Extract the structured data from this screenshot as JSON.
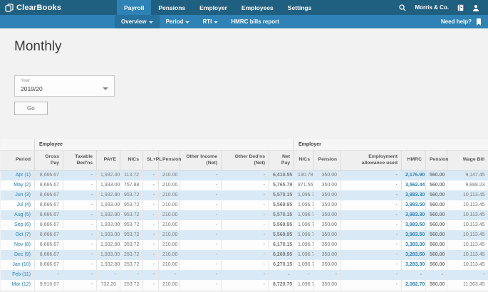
{
  "brand": {
    "name": "ClearBooks"
  },
  "topnav": {
    "items": [
      "Payroll",
      "Pensions",
      "Employer",
      "Employees",
      "Settings"
    ],
    "active_item": "Payroll",
    "account": "Morris & Co."
  },
  "subnav": {
    "items": [
      {
        "label": "Overview",
        "has_dropdown": true,
        "active": true
      },
      {
        "label": "Period",
        "has_dropdown": true,
        "active": false
      },
      {
        "label": "RTI",
        "has_dropdown": true,
        "active": false
      },
      {
        "label": "HMRC bills report",
        "has_dropdown": false,
        "active": false
      }
    ],
    "help_label": "Need help?"
  },
  "page": {
    "title": "Monthly"
  },
  "filter": {
    "year_label": "Year",
    "year_value": "2019/20",
    "go_label": "Go"
  },
  "table": {
    "group_headers": {
      "employee": "Employee",
      "employer": "Employer"
    },
    "column_ids": [
      "period",
      "gross_pay",
      "taxable_dedns",
      "paye",
      "nics",
      "slpl",
      "pension_ee",
      "other_income",
      "other_dedns",
      "net_pay",
      "er_nics",
      "er_pension",
      "emp_allowance",
      "hmrc",
      "pension_total",
      "wage_bill"
    ],
    "columns": [
      "Period",
      "Gross Pay",
      "Taxable Ded'ns",
      "PAYE",
      "NICs",
      "SL+PL",
      "Pension",
      "Other Income (Net)",
      "Other Ded'ns (Net)",
      "Net Pay",
      "NICs",
      "Pension",
      "Employment allowance used",
      "HMRC",
      "Pension",
      "Wage Bill"
    ],
    "rows": [
      [
        "Apr (1)",
        "8,666.67",
        "-",
        "1,932.40",
        "113.72",
        "-",
        "210.00",
        "-",
        "-",
        "6,410.55",
        "130.78",
        "350.00",
        "-",
        "2,176.90",
        "560.00",
        "9,147.45"
      ],
      [
        "May (2)",
        "8,666.67",
        "-",
        "1,933.00",
        "757.88",
        "-",
        "210.00",
        "-",
        "-",
        "5,765.79",
        "871.56",
        "350.00",
        "-",
        "3,562.44",
        "560.00",
        "9,888.23"
      ],
      [
        "Jun (3)",
        "8,666.67",
        "-",
        "1,932.80",
        "953.72",
        "-",
        "210.00",
        "-",
        "-",
        "5,570.15",
        "1,096.78",
        "350.00",
        "-",
        "3,983.30",
        "560.00",
        "10,113.45"
      ],
      [
        "Jul (4)",
        "8,666.67",
        "-",
        "1,933.00",
        "953.72",
        "-",
        "210.00",
        "-",
        "-",
        "5,569.95",
        "1,096.78",
        "350.00",
        "-",
        "3,983.50",
        "560.00",
        "10,113.45"
      ],
      [
        "Aug (5)",
        "8,666.67",
        "-",
        "1,932.80",
        "953.72",
        "-",
        "210.00",
        "-",
        "-",
        "5,570.15",
        "1,096.78",
        "350.00",
        "-",
        "3,983.30",
        "560.00",
        "10,113.45"
      ],
      [
        "Sep (6)",
        "8,666.67",
        "-",
        "1,933.00",
        "953.72",
        "-",
        "210.00",
        "-",
        "-",
        "5,569.95",
        "1,096.78",
        "350.00",
        "-",
        "3,983.50",
        "560.00",
        "10,113.45"
      ],
      [
        "Oct (7)",
        "8,666.67",
        "-",
        "1,933.00",
        "953.72",
        "-",
        "210.00",
        "-",
        "-",
        "5,569.95",
        "1,096.78",
        "350.00",
        "-",
        "3,983.50",
        "560.00",
        "10,113.45"
      ],
      [
        "Nov (8)",
        "8,666.67",
        "-",
        "1,932.80",
        "353.72",
        "-",
        "210.00",
        "-",
        "-",
        "6,170.15",
        "1,096.78",
        "350.00",
        "-",
        "3,383.30",
        "560.00",
        "10,113.45"
      ],
      [
        "Dec (9)",
        "8,666.67",
        "-",
        "1,933.00",
        "253.72",
        "-",
        "210.00",
        "-",
        "-",
        "6,269.95",
        "1,096.78",
        "350.00",
        "-",
        "3,283.50",
        "560.00",
        "10,113.45"
      ],
      [
        "Jan (10)",
        "8,666.67",
        "-",
        "1,932.80",
        "253.72",
        "-",
        "210.00",
        "-",
        "-",
        "6,270.15",
        "1,096.78",
        "350.00",
        "-",
        "3,283.30",
        "560.00",
        "10,113.45"
      ],
      [
        "Feb (11)",
        "-",
        "-",
        "-",
        "-",
        "-",
        "-",
        "-",
        "-",
        "-",
        "-",
        "-",
        "-",
        "-",
        "-",
        "-"
      ],
      [
        "Mar (12)",
        "9,916.67",
        "-",
        "732.20",
        "253.72",
        "-",
        "210.00",
        "-",
        "-",
        "8,720.75",
        "1,096.78",
        "350.00",
        "-",
        "2,082.70",
        "560.00",
        "11,363.45"
      ]
    ]
  },
  "colors": {
    "topbar": "#1f5f80",
    "accent": "#2e82b5",
    "link": "#2980b9",
    "row_alt": "#d9eaf6"
  }
}
